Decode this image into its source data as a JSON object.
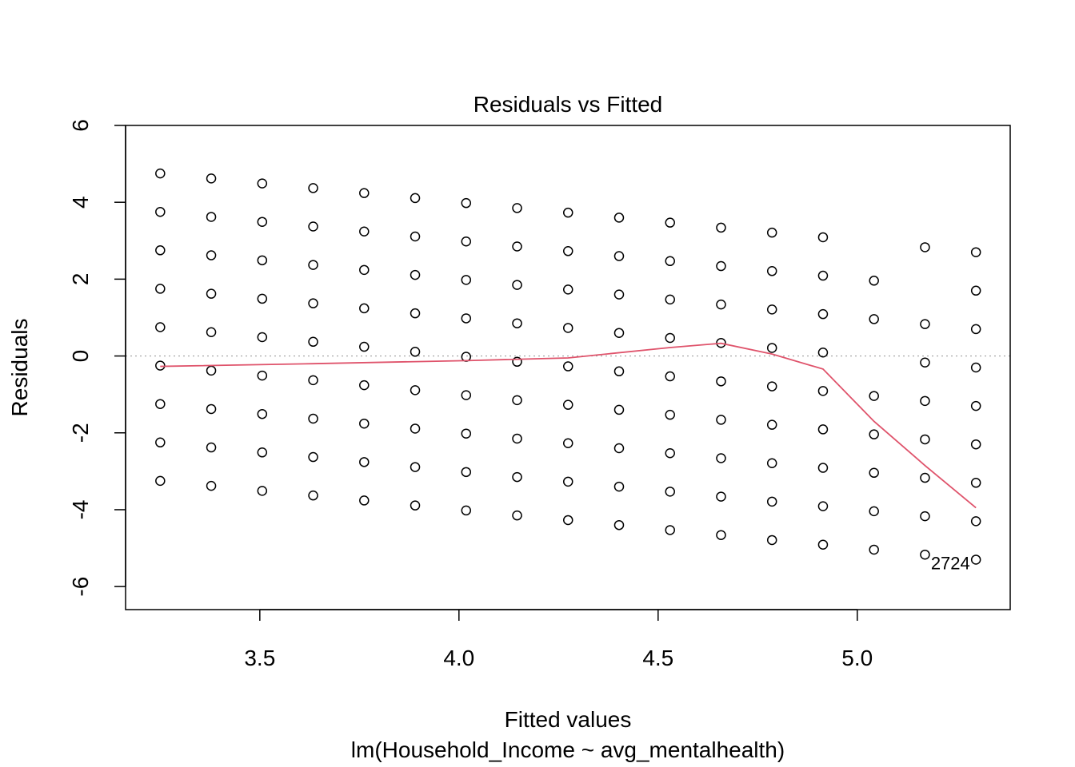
{
  "chart_data": {
    "type": "scatter",
    "title": "Residuals vs Fitted",
    "xlabel": "Fitted values",
    "subtitle": "lm(Household_Income ~ avg_mentalhealth)",
    "ylabel": "Residuals",
    "xlim": [
      3.163,
      5.384
    ],
    "ylim": [
      -6.6,
      6.0
    ],
    "x_ticks": [
      3.5,
      4.0,
      4.5,
      5.0
    ],
    "x_tick_labels": [
      "3.5",
      "4.0",
      "4.5",
      "5.0"
    ],
    "y_ticks": [
      -6,
      -4,
      -2,
      0,
      2,
      4,
      6
    ],
    "y_tick_labels": [
      "-6",
      "-4",
      "-2",
      "0",
      "2",
      "4",
      "6"
    ],
    "grid": false,
    "reference_line_y": 0,
    "fitted_levels": [
      3.25,
      3.378,
      3.506,
      3.634,
      3.762,
      3.89,
      4.018,
      4.146,
      4.274,
      4.402,
      4.53,
      4.658,
      4.786,
      4.914,
      5.042,
      5.17,
      5.298
    ],
    "residual_columns": [
      [
        4.75,
        3.75,
        2.75,
        1.75,
        0.75,
        -0.25,
        -1.25,
        -2.25,
        -3.25
      ],
      [
        4.62,
        3.62,
        2.62,
        1.62,
        0.62,
        -0.38,
        -1.38,
        -2.38,
        -3.38
      ],
      [
        4.49,
        3.49,
        2.49,
        1.49,
        0.49,
        -0.51,
        -1.51,
        -2.51,
        -3.51
      ],
      [
        4.37,
        3.37,
        2.37,
        1.37,
        0.37,
        -0.63,
        -1.63,
        -2.63,
        -3.63
      ],
      [
        4.24,
        3.24,
        2.24,
        1.24,
        0.24,
        -0.76,
        -1.76,
        -2.76,
        -3.76
      ],
      [
        4.11,
        3.11,
        2.11,
        1.11,
        0.11,
        -0.89,
        -1.89,
        -2.89,
        -3.89
      ],
      [
        3.98,
        2.98,
        1.98,
        0.98,
        -0.02,
        -1.02,
        -2.02,
        -3.02,
        -4.02
      ],
      [
        3.85,
        2.85,
        1.85,
        0.85,
        -0.15,
        -1.15,
        -2.15,
        -3.15,
        -4.15
      ],
      [
        3.73,
        2.73,
        1.73,
        0.73,
        -0.27,
        -1.27,
        -2.27,
        -3.27,
        -4.27
      ],
      [
        3.6,
        2.6,
        1.6,
        0.6,
        -0.4,
        -1.4,
        -2.4,
        -3.4,
        -4.4
      ],
      [
        3.47,
        2.47,
        1.47,
        0.47,
        -0.53,
        -1.53,
        -2.53,
        -3.53,
        -4.53
      ],
      [
        3.34,
        2.34,
        1.34,
        0.34,
        -0.66,
        -1.66,
        -2.66,
        -3.66,
        -4.66
      ],
      [
        3.21,
        2.21,
        1.21,
        0.21,
        -0.79,
        -1.79,
        -2.79,
        -3.79,
        -4.79
      ],
      [
        3.09,
        2.09,
        1.09,
        0.09,
        -0.91,
        -1.91,
        -2.91,
        -3.91,
        -4.91
      ],
      [
        1.96,
        0.96,
        -1.04,
        -2.04,
        -3.04,
        -4.04,
        -5.04
      ],
      [
        2.83,
        0.83,
        -0.17,
        -1.17,
        -2.17,
        -3.17,
        -4.17,
        -5.17
      ],
      [
        2.7,
        1.7,
        0.7,
        -0.3,
        -1.3,
        -2.3,
        -3.3,
        -4.3,
        -5.3
      ]
    ],
    "smoother": {
      "color": "#DF536B",
      "x": [
        3.25,
        3.634,
        4.018,
        4.274,
        4.53,
        4.658,
        4.786,
        4.914,
        5.042,
        5.17,
        5.298
      ],
      "y": [
        -0.27,
        -0.2,
        -0.12,
        -0.05,
        0.22,
        0.33,
        0.05,
        -0.34,
        -1.7,
        -2.85,
        -3.95
      ]
    },
    "point_labels": [
      {
        "text": "2724",
        "x": 5.234,
        "y": -5.55
      }
    ]
  }
}
